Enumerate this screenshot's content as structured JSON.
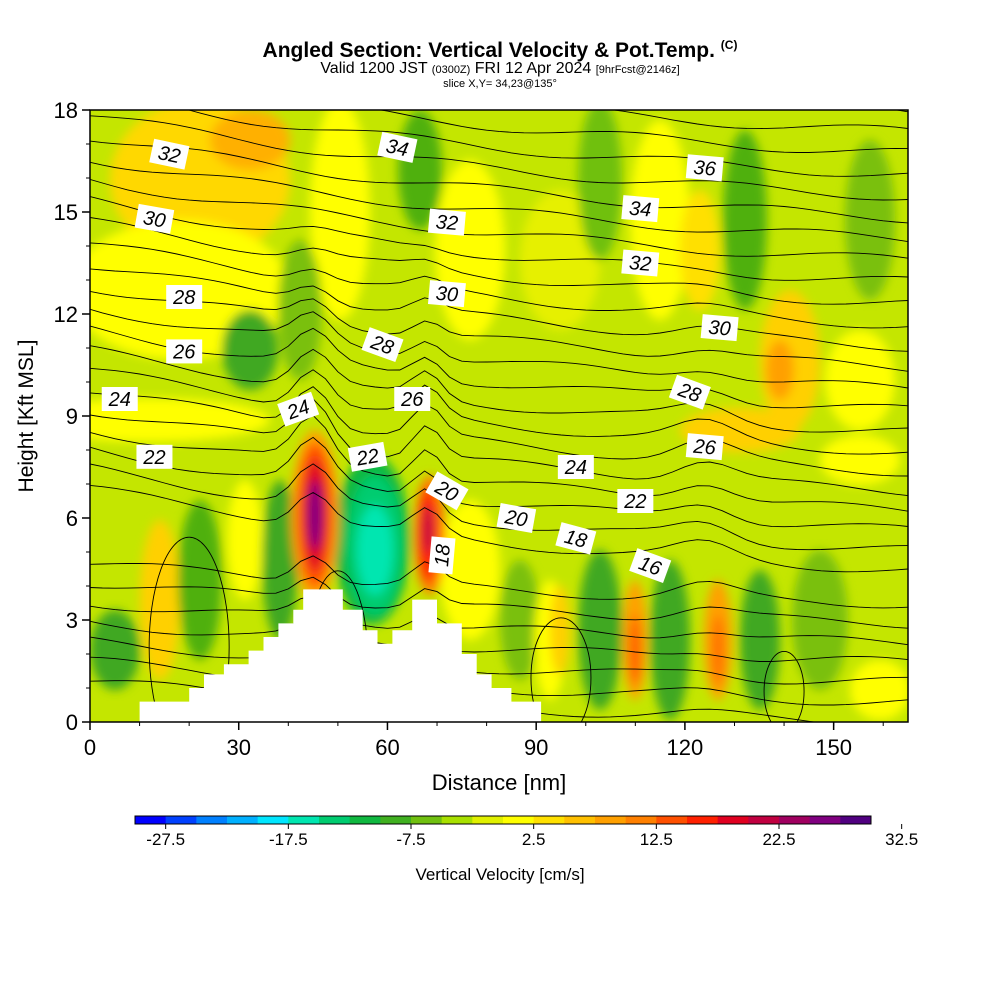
{
  "title": {
    "main": "Angled Section: Vertical Velocity & Pot.Temp.",
    "copyright": "(C)",
    "valid_prefix": "Valid 1200 JST",
    "utc": "(0300Z)",
    "valid_suffix": "FRI 12 Apr 2024",
    "forecast": "[9hrFcst@2146z]",
    "slice": "slice X,Y= 34,23@135°"
  },
  "chart_data": {
    "type": "heatmap",
    "xlabel": "Distance [nm]",
    "ylabel": "Height [Kft MSL]",
    "xlim": [
      0,
      165
    ],
    "ylim": [
      0,
      18
    ],
    "x_ticks": [
      "0",
      "30",
      "60",
      "90",
      "120",
      "150"
    ],
    "y_ticks": [
      "0",
      "3",
      "6",
      "9",
      "12",
      "15",
      "18"
    ],
    "colorbar": {
      "label": "Vertical Velocity [cm/s]",
      "tick_labels": [
        "-27.5",
        "-17.5",
        "-7.5",
        "2.5",
        "12.5",
        "22.5",
        "32.5"
      ],
      "colors": [
        "#0000ff",
        "#0040ff",
        "#0080ff",
        "#00b0ff",
        "#00e6ff",
        "#00e6b0",
        "#00cc70",
        "#10b840",
        "#40b020",
        "#70c010",
        "#a8e000",
        "#e0f000",
        "#ffff00",
        "#ffe000",
        "#ffc000",
        "#ffa000",
        "#ff8000",
        "#ff5000",
        "#ff2000",
        "#e00020",
        "#c00040",
        "#a00060",
        "#800080",
        "#500080"
      ]
    },
    "terrain": [
      [
        0,
        0
      ],
      [
        10,
        0
      ],
      [
        10,
        0.6
      ],
      [
        20,
        0.6
      ],
      [
        20,
        1.0
      ],
      [
        23,
        1.0
      ],
      [
        23,
        1.4
      ],
      [
        27,
        1.4
      ],
      [
        27,
        1.7
      ],
      [
        32,
        1.7
      ],
      [
        32,
        2.1
      ],
      [
        35,
        2.1
      ],
      [
        35,
        2.5
      ],
      [
        38,
        2.5
      ],
      [
        38,
        2.9
      ],
      [
        41,
        2.9
      ],
      [
        41,
        3.3
      ],
      [
        43,
        3.3
      ],
      [
        43,
        3.9
      ],
      [
        51,
        3.9
      ],
      [
        51,
        3.3
      ],
      [
        55,
        3.3
      ],
      [
        55,
        2.7
      ],
      [
        58,
        2.7
      ],
      [
        58,
        2.3
      ],
      [
        61,
        2.3
      ],
      [
        61,
        2.7
      ],
      [
        65,
        2.7
      ],
      [
        65,
        3.6
      ],
      [
        70,
        3.6
      ],
      [
        70,
        2.9
      ],
      [
        75,
        2.9
      ],
      [
        75,
        2.0
      ],
      [
        78,
        2.0
      ],
      [
        78,
        1.4
      ],
      [
        81,
        1.4
      ],
      [
        81,
        1.0
      ],
      [
        85,
        1.0
      ],
      [
        85,
        0.6
      ],
      [
        91,
        0.6
      ],
      [
        91,
        0
      ],
      [
        165,
        0
      ]
    ],
    "theta_contour_labels": [
      {
        "x": 16,
        "y": 16.7,
        "label": "32",
        "angle": 12
      },
      {
        "x": 62,
        "y": 16.9,
        "label": "34",
        "angle": 12
      },
      {
        "x": 124,
        "y": 16.3,
        "label": "36",
        "angle": 5
      },
      {
        "x": 13,
        "y": 14.8,
        "label": "30",
        "angle": 10
      },
      {
        "x": 72,
        "y": 14.7,
        "label": "32",
        "angle": 5
      },
      {
        "x": 111,
        "y": 15.1,
        "label": "34",
        "angle": 5
      },
      {
        "x": 111,
        "y": 13.5,
        "label": "32",
        "angle": 5
      },
      {
        "x": 19,
        "y": 12.5,
        "label": "28",
        "angle": 0
      },
      {
        "x": 72,
        "y": 12.6,
        "label": "30",
        "angle": 5
      },
      {
        "x": 127,
        "y": 11.6,
        "label": "30",
        "angle": 5
      },
      {
        "x": 19,
        "y": 10.9,
        "label": "26",
        "angle": 0
      },
      {
        "x": 59,
        "y": 11.1,
        "label": "28",
        "angle": 20
      },
      {
        "x": 6,
        "y": 9.5,
        "label": "24",
        "angle": 0
      },
      {
        "x": 42,
        "y": 9.2,
        "label": "24",
        "angle": -20
      },
      {
        "x": 65,
        "y": 9.5,
        "label": "26",
        "angle": 0
      },
      {
        "x": 121,
        "y": 9.7,
        "label": "28",
        "angle": 20
      },
      {
        "x": 13,
        "y": 7.8,
        "label": "22",
        "angle": 0
      },
      {
        "x": 56,
        "y": 7.8,
        "label": "22",
        "angle": -10
      },
      {
        "x": 98,
        "y": 7.5,
        "label": "24",
        "angle": 0
      },
      {
        "x": 124,
        "y": 8.1,
        "label": "26",
        "angle": 5
      },
      {
        "x": 72,
        "y": 6.8,
        "label": "20",
        "angle": 30
      },
      {
        "x": 86,
        "y": 6.0,
        "label": "20",
        "angle": 10
      },
      {
        "x": 110,
        "y": 6.5,
        "label": "22",
        "angle": 0
      },
      {
        "x": 98,
        "y": 5.4,
        "label": "18",
        "angle": 15
      },
      {
        "x": 71,
        "y": 4.9,
        "label": "18",
        "angle": -85
      },
      {
        "x": 113,
        "y": 4.6,
        "label": "16",
        "angle": 20
      }
    ]
  }
}
